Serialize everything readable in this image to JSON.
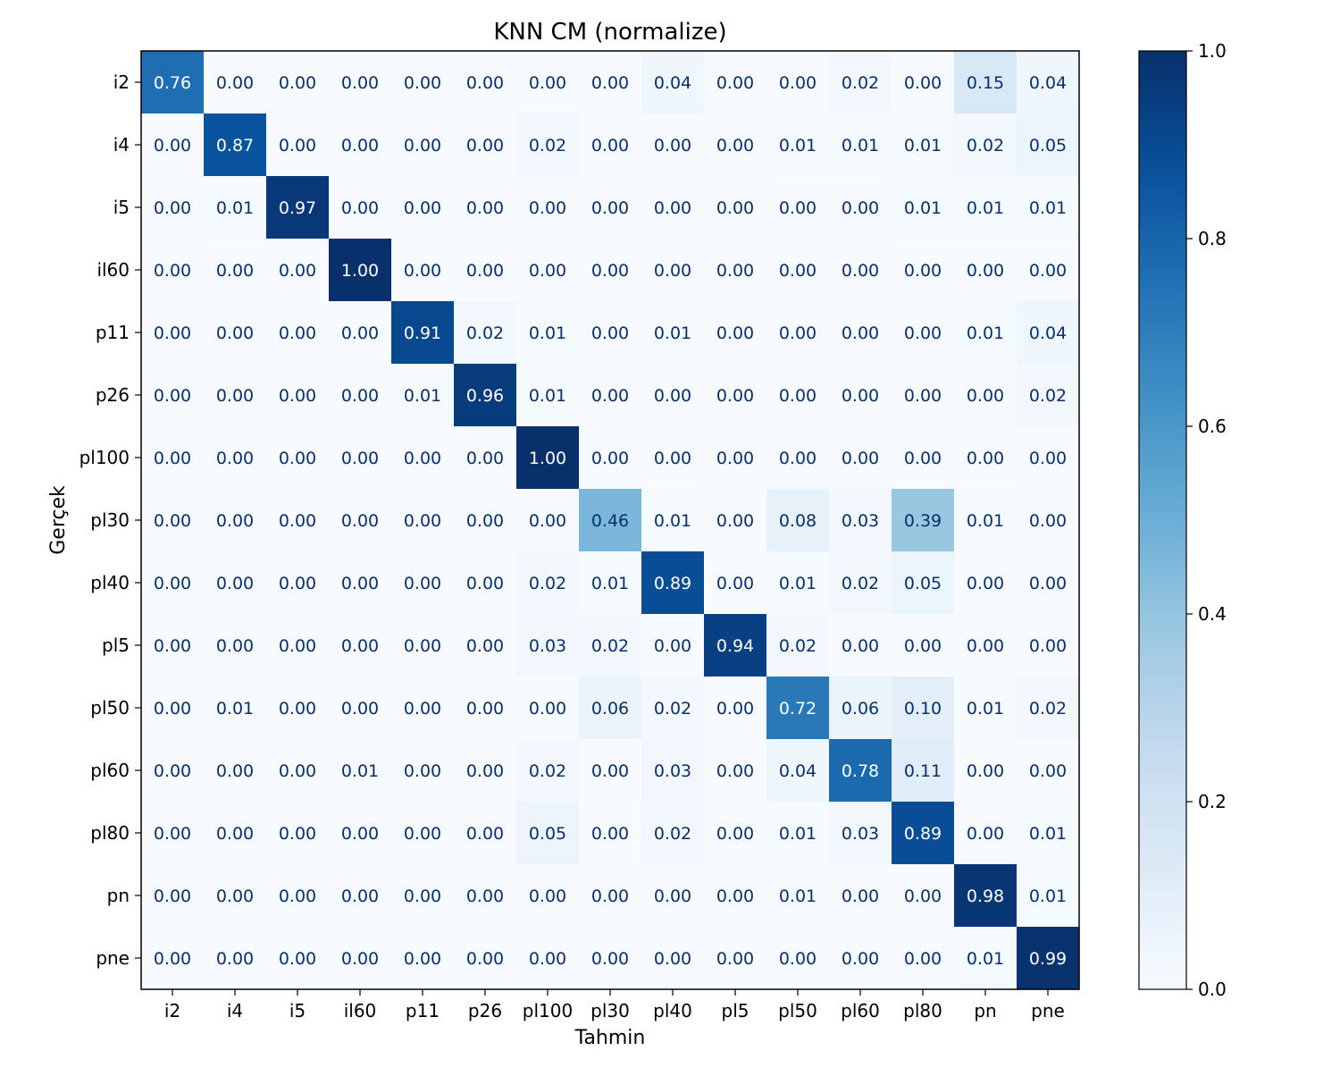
{
  "chart_data": {
    "type": "heatmap",
    "title": "KNN CM (normalize)",
    "xlabel": "Tahmin",
    "ylabel": "Gerçek",
    "labels": [
      "i2",
      "i4",
      "i5",
      "il60",
      "p11",
      "p26",
      "pl100",
      "pl30",
      "pl40",
      "pl5",
      "pl50",
      "pl60",
      "pl80",
      "pn",
      "pne"
    ],
    "matrix": [
      [
        0.76,
        0.0,
        0.0,
        0.0,
        0.0,
        0.0,
        0.0,
        0.0,
        0.04,
        0.0,
        0.0,
        0.02,
        0.0,
        0.15,
        0.04
      ],
      [
        0.0,
        0.87,
        0.0,
        0.0,
        0.0,
        0.0,
        0.02,
        0.0,
        0.0,
        0.0,
        0.01,
        0.01,
        0.01,
        0.02,
        0.05
      ],
      [
        0.0,
        0.01,
        0.97,
        0.0,
        0.0,
        0.0,
        0.0,
        0.0,
        0.0,
        0.0,
        0.0,
        0.0,
        0.01,
        0.01,
        0.01
      ],
      [
        0.0,
        0.0,
        0.0,
        1.0,
        0.0,
        0.0,
        0.0,
        0.0,
        0.0,
        0.0,
        0.0,
        0.0,
        0.0,
        0.0,
        0.0
      ],
      [
        0.0,
        0.0,
        0.0,
        0.0,
        0.91,
        0.02,
        0.01,
        0.0,
        0.01,
        0.0,
        0.0,
        0.0,
        0.0,
        0.01,
        0.04
      ],
      [
        0.0,
        0.0,
        0.0,
        0.0,
        0.01,
        0.96,
        0.01,
        0.0,
        0.0,
        0.0,
        0.0,
        0.0,
        0.0,
        0.0,
        0.02
      ],
      [
        0.0,
        0.0,
        0.0,
        0.0,
        0.0,
        0.0,
        1.0,
        0.0,
        0.0,
        0.0,
        0.0,
        0.0,
        0.0,
        0.0,
        0.0
      ],
      [
        0.0,
        0.0,
        0.0,
        0.0,
        0.0,
        0.0,
        0.0,
        0.46,
        0.01,
        0.0,
        0.08,
        0.03,
        0.39,
        0.01,
        0.0
      ],
      [
        0.0,
        0.0,
        0.0,
        0.0,
        0.0,
        0.0,
        0.02,
        0.01,
        0.89,
        0.0,
        0.01,
        0.02,
        0.05,
        0.0,
        0.0
      ],
      [
        0.0,
        0.0,
        0.0,
        0.0,
        0.0,
        0.0,
        0.03,
        0.02,
        0.0,
        0.94,
        0.02,
        0.0,
        0.0,
        0.0,
        0.0
      ],
      [
        0.0,
        0.01,
        0.0,
        0.0,
        0.0,
        0.0,
        0.0,
        0.06,
        0.02,
        0.0,
        0.72,
        0.06,
        0.1,
        0.01,
        0.02
      ],
      [
        0.0,
        0.0,
        0.0,
        0.01,
        0.0,
        0.0,
        0.02,
        0.0,
        0.03,
        0.0,
        0.04,
        0.78,
        0.11,
        0.0,
        0.0
      ],
      [
        0.0,
        0.0,
        0.0,
        0.0,
        0.0,
        0.0,
        0.05,
        0.0,
        0.02,
        0.0,
        0.01,
        0.03,
        0.89,
        0.0,
        0.01
      ],
      [
        0.0,
        0.0,
        0.0,
        0.0,
        0.0,
        0.0,
        0.0,
        0.0,
        0.0,
        0.0,
        0.01,
        0.0,
        0.0,
        0.98,
        0.01
      ],
      [
        0.0,
        0.0,
        0.0,
        0.0,
        0.0,
        0.0,
        0.0,
        0.0,
        0.0,
        0.0,
        0.0,
        0.0,
        0.0,
        0.01,
        0.99
      ]
    ],
    "colormap": "Blues",
    "value_range": [
      0,
      1
    ],
    "colorbar_ticks": [
      "0.0",
      "0.2",
      "0.4",
      "0.6",
      "0.8",
      "1.0"
    ],
    "colorbar_tick_values": [
      0.0,
      0.2,
      0.4,
      0.6,
      0.8,
      1.0
    ],
    "cell_text_dark": "#08306b",
    "cell_text_light": "#ffffff",
    "grid": false
  }
}
